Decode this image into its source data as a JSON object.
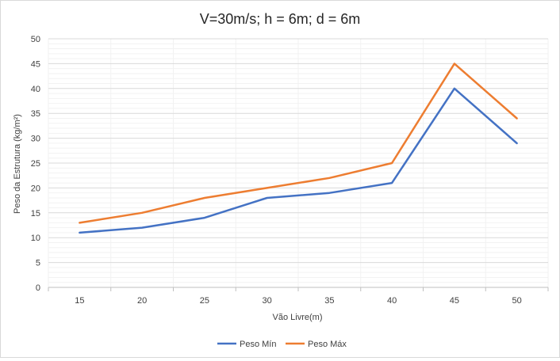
{
  "chart_data": {
    "type": "line",
    "title": "V=30m/s; h = 6m; d = 6m",
    "xlabel": "Vão Livre(m)",
    "ylabel": "Peso da Estrutura (kg/m²)",
    "categories": [
      "15",
      "20",
      "25",
      "30",
      "35",
      "40",
      "45",
      "50"
    ],
    "ylim": [
      0,
      50
    ],
    "yticks": [
      "0",
      "5",
      "10",
      "15",
      "20",
      "25",
      "30",
      "35",
      "40",
      "45",
      "50"
    ],
    "grid": true,
    "legend_position": "bottom",
    "series": [
      {
        "name": "Peso Mín",
        "color": "#4472c4",
        "values": [
          11,
          12,
          14,
          18,
          19,
          21,
          40,
          29
        ]
      },
      {
        "name": "Peso Máx",
        "color": "#ed7d31",
        "values": [
          13,
          15,
          18,
          20,
          22,
          25,
          45,
          34
        ]
      }
    ]
  }
}
